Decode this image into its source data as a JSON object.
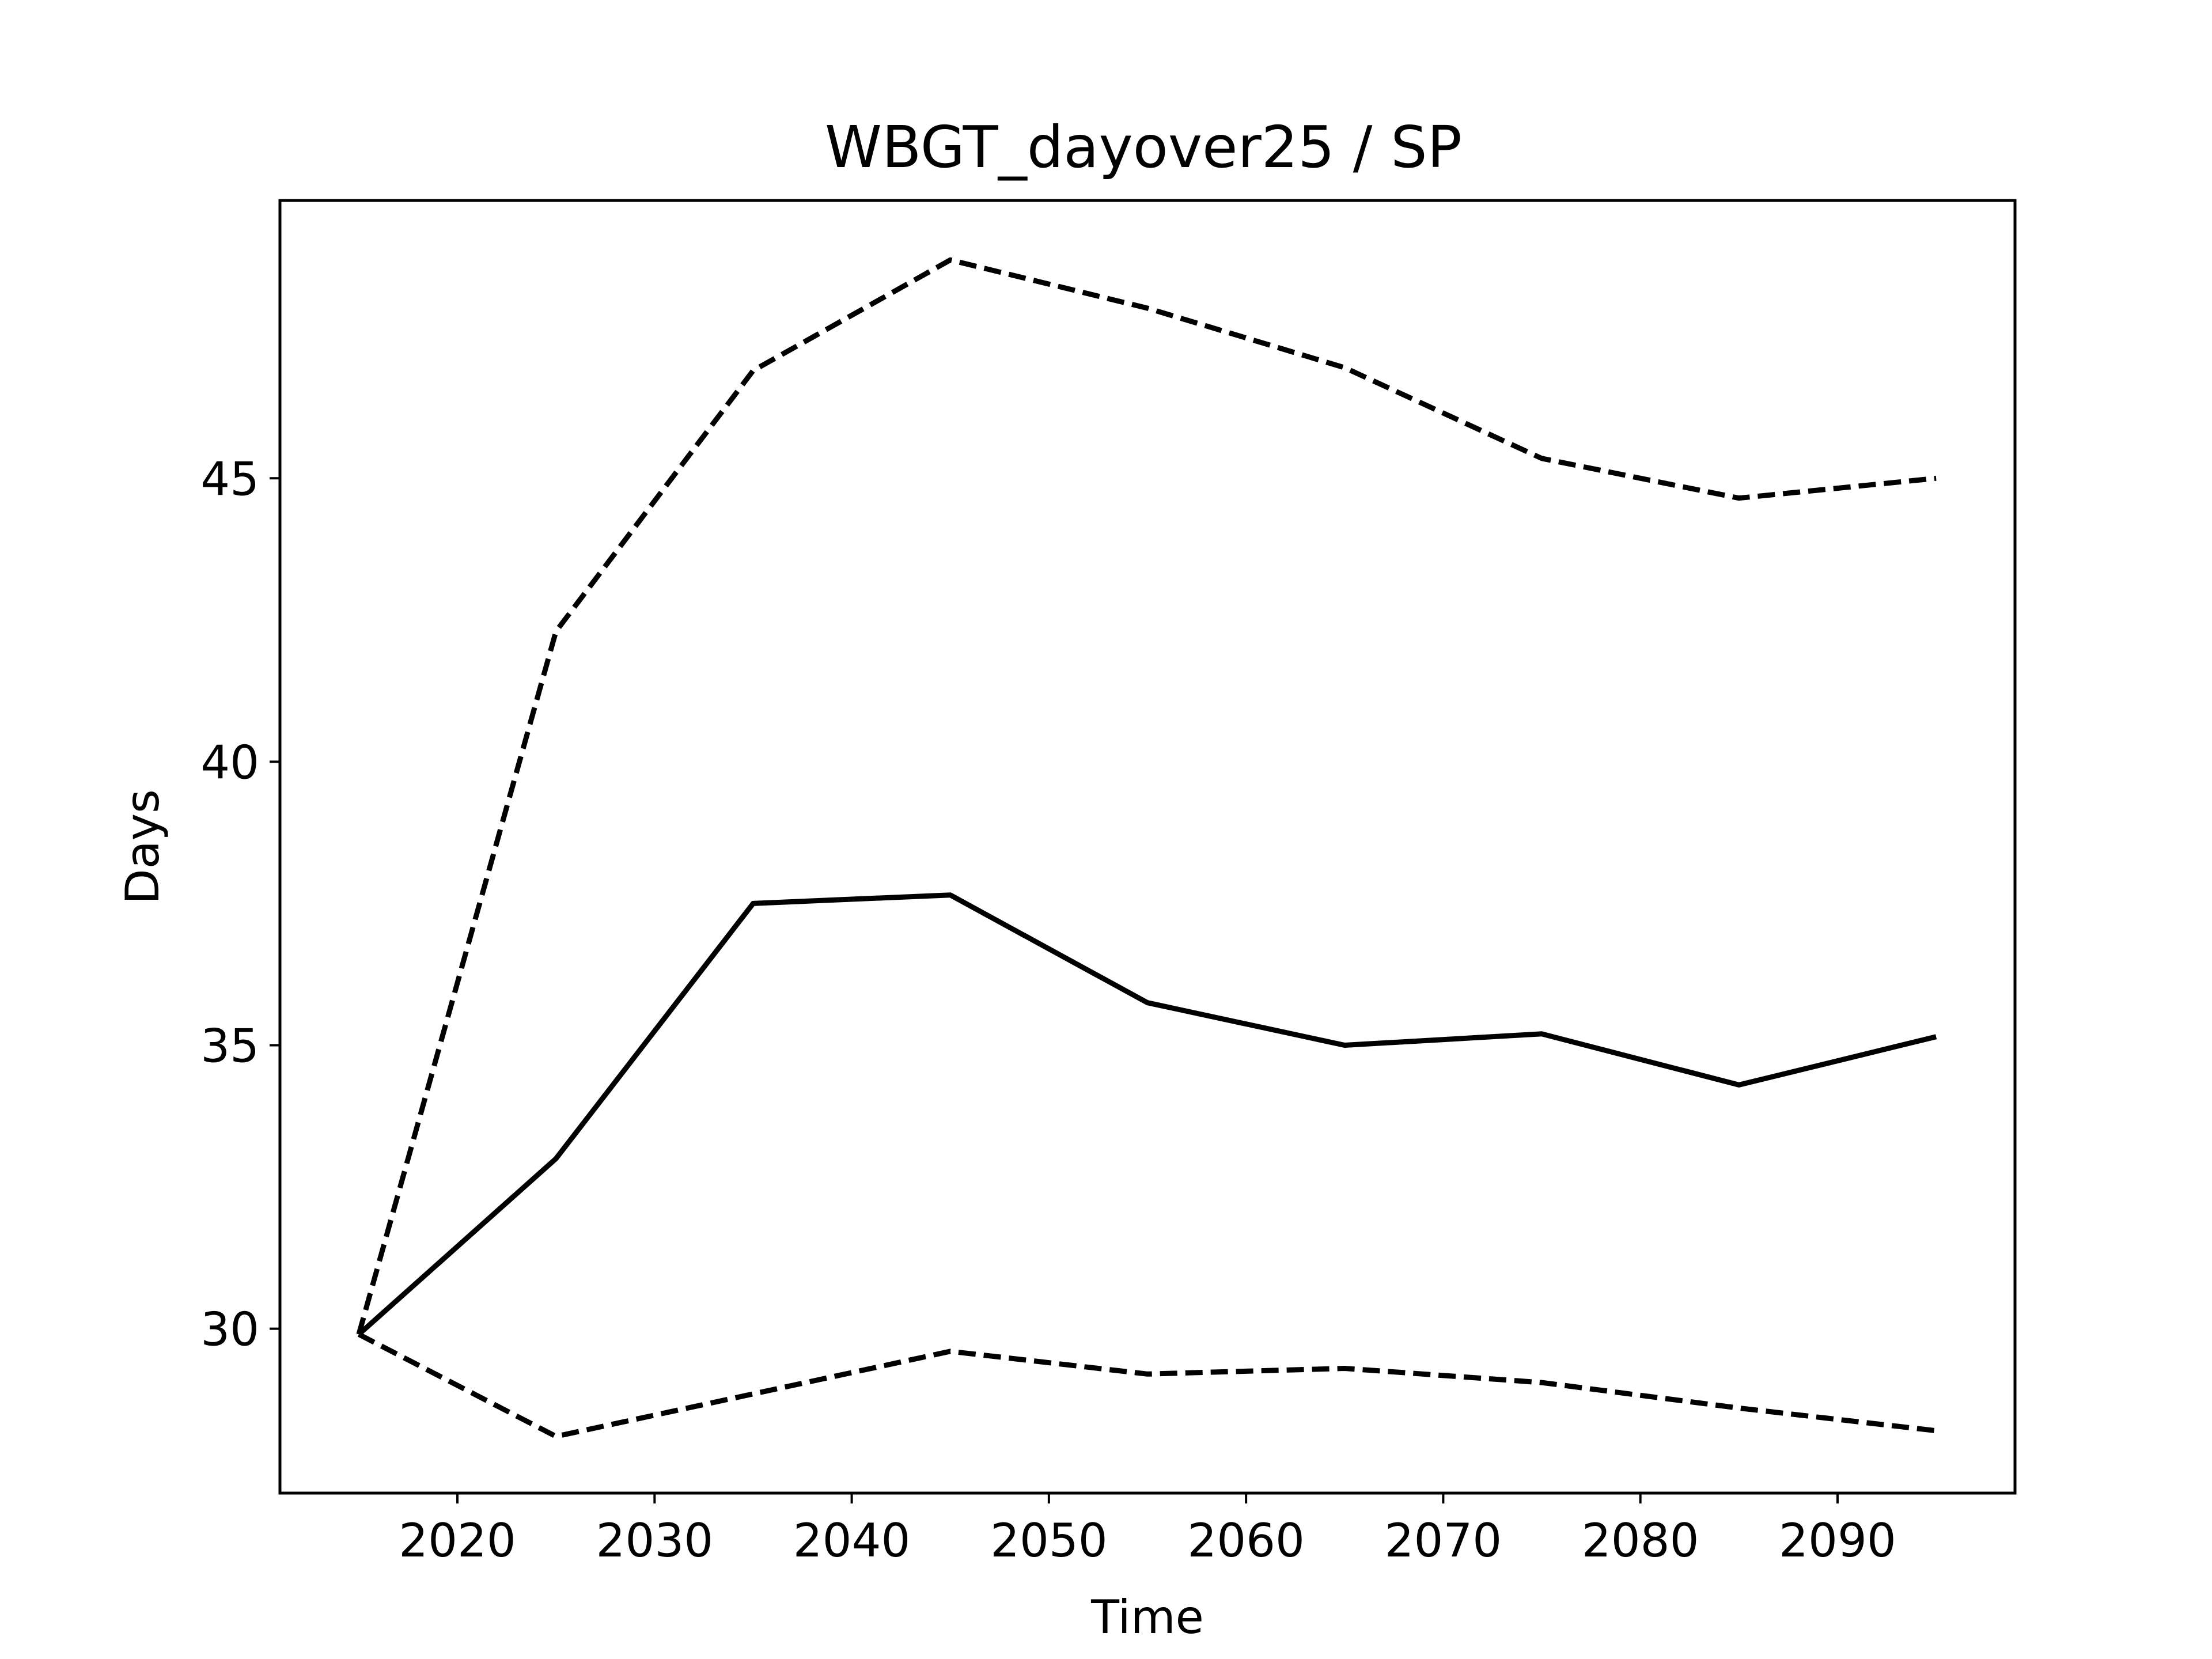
{
  "chart_data": {
    "type": "line",
    "title": "WBGT_dayover25 / SP",
    "xlabel": "Time",
    "ylabel": "Days",
    "x": [
      2015,
      2025,
      2035,
      2045,
      2055,
      2065,
      2075,
      2085,
      2095
    ],
    "xlim": [
      2011,
      2099
    ],
    "ylim": [
      27.1,
      49.9
    ],
    "xticks": [
      2020,
      2030,
      2040,
      2050,
      2060,
      2070,
      2080,
      2090
    ],
    "yticks": [
      30,
      35,
      40,
      45
    ],
    "grid": false,
    "legend": "none",
    "series": [
      {
        "style": "solid",
        "color": "#000000",
        "values": [
          29.9,
          33.0,
          37.5,
          37.65,
          35.75,
          35.0,
          35.2,
          34.3,
          35.15
        ]
      },
      {
        "style": "dashed",
        "color": "#000000",
        "values": [
          29.9,
          42.3,
          46.9,
          48.85,
          48.0,
          46.95,
          45.35,
          44.65,
          45.0
        ]
      },
      {
        "style": "dashed",
        "color": "#000000",
        "values": [
          29.9,
          28.1,
          28.85,
          29.6,
          29.2,
          29.3,
          29.05,
          28.6,
          28.2
        ]
      }
    ]
  }
}
